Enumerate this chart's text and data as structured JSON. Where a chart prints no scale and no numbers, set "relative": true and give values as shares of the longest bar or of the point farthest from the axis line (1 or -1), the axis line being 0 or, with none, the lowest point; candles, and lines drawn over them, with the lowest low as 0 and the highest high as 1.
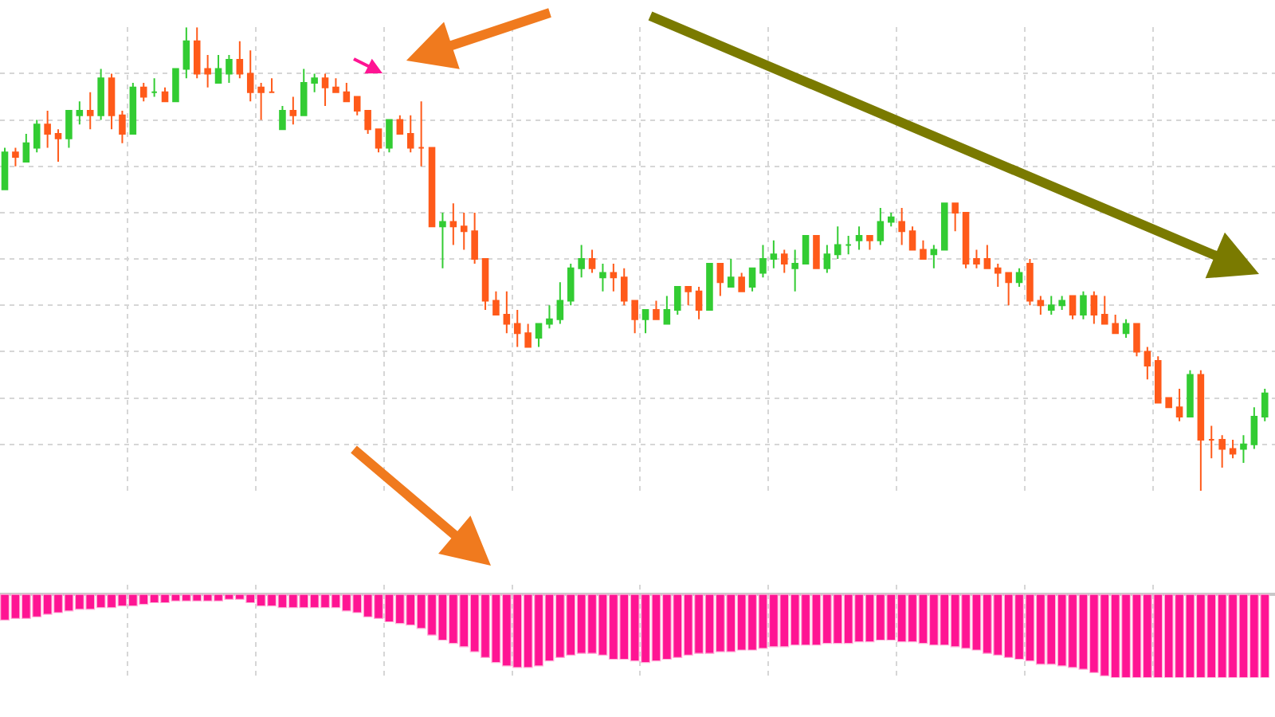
{
  "chart_data": [
    {
      "type": "candlestick",
      "relative": true,
      "grid": true,
      "tick_labels": false,
      "categories": [
        null,
        null,
        null,
        null,
        null,
        null,
        null,
        null,
        null,
        null,
        null,
        null,
        null,
        null,
        null,
        null,
        null,
        null,
        null,
        null,
        null,
        null,
        null,
        null,
        null,
        null,
        null,
        null,
        null,
        null,
        null,
        null,
        null,
        null,
        null,
        null,
        null,
        null,
        null,
        null,
        null,
        null,
        null,
        null,
        null,
        null,
        null,
        null,
        null,
        null,
        null,
        null,
        null,
        null,
        null,
        null,
        null,
        null,
        null,
        null,
        null,
        null,
        null,
        null,
        null,
        null,
        null,
        null,
        null,
        null,
        null,
        null,
        null,
        null,
        null,
        null,
        null,
        null,
        null,
        null,
        null,
        null,
        null,
        null,
        null,
        null,
        null,
        null,
        null,
        null,
        null,
        null,
        null,
        null,
        null,
        null,
        null,
        null,
        null,
        null,
        null,
        null,
        null,
        null,
        null,
        null,
        null,
        null,
        null,
        null,
        null,
        null,
        null,
        null,
        null,
        null,
        null,
        null,
        null
      ],
      "ohlc": [
        [
          0.65,
          0.74,
          0.65,
          0.73
        ],
        [
          0.73,
          0.74,
          0.7,
          0.72
        ],
        [
          0.71,
          0.77,
          0.71,
          0.75
        ],
        [
          0.74,
          0.8,
          0.73,
          0.79
        ],
        [
          0.79,
          0.82,
          0.74,
          0.77
        ],
        [
          0.77,
          0.78,
          0.71,
          0.76
        ],
        [
          0.76,
          0.82,
          0.74,
          0.82
        ],
        [
          0.81,
          0.84,
          0.79,
          0.82
        ],
        [
          0.82,
          0.86,
          0.78,
          0.81
        ],
        [
          0.81,
          0.91,
          0.8,
          0.89
        ],
        [
          0.89,
          0.9,
          0.78,
          0.81
        ],
        [
          0.81,
          0.82,
          0.75,
          0.77
        ],
        [
          0.77,
          0.88,
          0.77,
          0.87
        ],
        [
          0.87,
          0.88,
          0.84,
          0.85
        ],
        [
          0.86,
          0.89,
          0.85,
          0.86
        ],
        [
          0.86,
          0.87,
          0.84,
          0.84
        ],
        [
          0.84,
          0.91,
          0.84,
          0.91
        ],
        [
          0.91,
          1.0,
          0.89,
          0.97
        ],
        [
          0.97,
          1.0,
          0.89,
          0.9
        ],
        [
          0.91,
          0.94,
          0.87,
          0.9
        ],
        [
          0.88,
          0.94,
          0.88,
          0.91
        ],
        [
          0.9,
          0.94,
          0.88,
          0.93
        ],
        [
          0.93,
          0.97,
          0.89,
          0.9
        ],
        [
          0.9,
          0.95,
          0.84,
          0.86
        ],
        [
          0.87,
          0.88,
          0.8,
          0.86
        ],
        [
          0.86,
          0.89,
          0.86,
          0.86
        ],
        [
          0.78,
          0.83,
          0.78,
          0.82
        ],
        [
          0.82,
          0.85,
          0.79,
          0.81
        ],
        [
          0.81,
          0.91,
          0.81,
          0.88
        ],
        [
          0.88,
          0.9,
          0.86,
          0.89
        ],
        [
          0.89,
          0.9,
          0.83,
          0.87
        ],
        [
          0.87,
          0.89,
          0.86,
          0.86
        ],
        [
          0.86,
          0.88,
          0.84,
          0.84
        ],
        [
          0.85,
          0.85,
          0.81,
          0.82
        ],
        [
          0.82,
          0.82,
          0.77,
          0.78
        ],
        [
          0.78,
          0.78,
          0.73,
          0.74
        ],
        [
          0.74,
          0.8,
          0.73,
          0.8
        ],
        [
          0.8,
          0.81,
          0.77,
          0.77
        ],
        [
          0.77,
          0.81,
          0.73,
          0.74
        ],
        [
          0.74,
          0.84,
          0.7,
          0.74
        ],
        [
          0.74,
          0.74,
          0.57,
          0.57
        ],
        [
          0.57,
          0.6,
          0.48,
          0.58
        ],
        [
          0.58,
          0.62,
          0.53,
          0.57
        ],
        [
          0.57,
          0.6,
          0.52,
          0.56
        ],
        [
          0.56,
          0.6,
          0.49,
          0.5
        ],
        [
          0.5,
          0.5,
          0.39,
          0.41
        ],
        [
          0.41,
          0.43,
          0.38,
          0.38
        ],
        [
          0.38,
          0.43,
          0.34,
          0.36
        ],
        [
          0.36,
          0.39,
          0.31,
          0.34
        ],
        [
          0.34,
          0.36,
          0.31,
          0.31
        ],
        [
          0.33,
          0.36,
          0.31,
          0.36
        ],
        [
          0.36,
          0.4,
          0.35,
          0.37
        ],
        [
          0.37,
          0.45,
          0.36,
          0.41
        ],
        [
          0.41,
          0.49,
          0.4,
          0.48
        ],
        [
          0.48,
          0.53,
          0.46,
          0.5
        ],
        [
          0.5,
          0.52,
          0.47,
          0.48
        ],
        [
          0.46,
          0.49,
          0.43,
          0.47
        ],
        [
          0.47,
          0.49,
          0.43,
          0.46
        ],
        [
          0.46,
          0.48,
          0.4,
          0.41
        ],
        [
          0.41,
          0.41,
          0.34,
          0.37
        ],
        [
          0.37,
          0.39,
          0.34,
          0.39
        ],
        [
          0.39,
          0.41,
          0.37,
          0.37
        ],
        [
          0.36,
          0.42,
          0.36,
          0.39
        ],
        [
          0.39,
          0.44,
          0.38,
          0.44
        ],
        [
          0.44,
          0.44,
          0.4,
          0.43
        ],
        [
          0.43,
          0.44,
          0.37,
          0.39
        ],
        [
          0.39,
          0.49,
          0.39,
          0.49
        ],
        [
          0.49,
          0.49,
          0.42,
          0.45
        ],
        [
          0.44,
          0.5,
          0.44,
          0.46
        ],
        [
          0.46,
          0.47,
          0.43,
          0.43
        ],
        [
          0.44,
          0.48,
          0.43,
          0.48
        ],
        [
          0.47,
          0.53,
          0.46,
          0.5
        ],
        [
          0.5,
          0.54,
          0.48,
          0.51
        ],
        [
          0.51,
          0.52,
          0.47,
          0.49
        ],
        [
          0.48,
          0.52,
          0.43,
          0.49
        ],
        [
          0.49,
          0.55,
          0.49,
          0.55
        ],
        [
          0.55,
          0.55,
          0.48,
          0.48
        ],
        [
          0.48,
          0.53,
          0.47,
          0.51
        ],
        [
          0.51,
          0.57,
          0.5,
          0.53
        ],
        [
          0.53,
          0.55,
          0.51,
          0.53
        ],
        [
          0.54,
          0.57,
          0.52,
          0.55
        ],
        [
          0.55,
          0.55,
          0.52,
          0.54
        ],
        [
          0.54,
          0.61,
          0.53,
          0.58
        ],
        [
          0.58,
          0.6,
          0.57,
          0.59
        ],
        [
          0.58,
          0.61,
          0.53,
          0.56
        ],
        [
          0.56,
          0.57,
          0.52,
          0.52
        ],
        [
          0.52,
          0.54,
          0.5,
          0.5
        ],
        [
          0.51,
          0.53,
          0.48,
          0.52
        ],
        [
          0.52,
          0.62,
          0.52,
          0.62
        ],
        [
          0.62,
          0.62,
          0.56,
          0.6
        ],
        [
          0.6,
          0.6,
          0.48,
          0.49
        ],
        [
          0.5,
          0.52,
          0.48,
          0.49
        ],
        [
          0.5,
          0.53,
          0.48,
          0.48
        ],
        [
          0.48,
          0.49,
          0.44,
          0.47
        ],
        [
          0.47,
          0.47,
          0.4,
          0.45
        ],
        [
          0.45,
          0.48,
          0.44,
          0.47
        ],
        [
          0.49,
          0.5,
          0.4,
          0.41
        ],
        [
          0.41,
          0.42,
          0.38,
          0.4
        ],
        [
          0.39,
          0.42,
          0.38,
          0.4
        ],
        [
          0.4,
          0.42,
          0.39,
          0.41
        ],
        [
          0.42,
          0.42,
          0.37,
          0.38
        ],
        [
          0.38,
          0.43,
          0.37,
          0.42
        ],
        [
          0.42,
          0.43,
          0.36,
          0.38
        ],
        [
          0.38,
          0.42,
          0.36,
          0.36
        ],
        [
          0.36,
          0.38,
          0.34,
          0.34
        ],
        [
          0.34,
          0.37,
          0.33,
          0.36
        ],
        [
          0.36,
          0.36,
          0.29,
          0.3
        ],
        [
          0.3,
          0.31,
          0.24,
          0.27
        ],
        [
          0.28,
          0.29,
          0.19,
          0.19
        ],
        [
          0.2,
          0.2,
          0.18,
          0.18
        ],
        [
          0.18,
          0.22,
          0.15,
          0.16
        ],
        [
          0.16,
          0.26,
          0.16,
          0.25
        ],
        [
          0.25,
          0.26,
          0.0,
          0.11
        ],
        [
          0.11,
          0.14,
          0.07,
          0.11
        ],
        [
          0.11,
          0.12,
          0.05,
          0.09
        ],
        [
          0.09,
          0.11,
          0.07,
          0.08
        ],
        [
          0.09,
          0.12,
          0.06,
          0.1
        ],
        [
          0.1,
          0.18,
          0.09,
          0.16
        ],
        [
          0.16,
          0.22,
          0.15,
          0.21
        ]
      ]
    },
    {
      "type": "bar",
      "relative": true,
      "grid": "x",
      "tick_labels": false,
      "color": "#ff1493",
      "categories": [
        null,
        null,
        null,
        null,
        null,
        null,
        null,
        null,
        null,
        null,
        null,
        null,
        null,
        null,
        null,
        null,
        null,
        null,
        null,
        null,
        null,
        null,
        null,
        null,
        null,
        null,
        null,
        null,
        null,
        null,
        null,
        null,
        null,
        null,
        null,
        null,
        null,
        null,
        null,
        null,
        null,
        null,
        null,
        null,
        null,
        null,
        null,
        null,
        null,
        null,
        null,
        null,
        null,
        null,
        null,
        null,
        null,
        null,
        null,
        null,
        null,
        null,
        null,
        null,
        null,
        null,
        null,
        null,
        null,
        null,
        null,
        null,
        null,
        null,
        null,
        null,
        null,
        null,
        null,
        null,
        null,
        null,
        null,
        null,
        null,
        null,
        null,
        null,
        null,
        null,
        null,
        null,
        null,
        null,
        null,
        null,
        null,
        null,
        null,
        null,
        null,
        null,
        null,
        null,
        null,
        null,
        null,
        null,
        null,
        null,
        null,
        null,
        null,
        null,
        null,
        null,
        null,
        null,
        null
      ],
      "values": [
        -0.31,
        -0.29,
        -0.29,
        -0.27,
        -0.24,
        -0.22,
        -0.2,
        -0.18,
        -0.18,
        -0.16,
        -0.16,
        -0.14,
        -0.14,
        -0.12,
        -0.1,
        -0.1,
        -0.08,
        -0.08,
        -0.08,
        -0.08,
        -0.08,
        -0.06,
        -0.06,
        -0.1,
        -0.14,
        -0.14,
        -0.16,
        -0.16,
        -0.16,
        -0.16,
        -0.16,
        -0.16,
        -0.2,
        -0.22,
        -0.27,
        -0.29,
        -0.33,
        -0.35,
        -0.37,
        -0.41,
        -0.49,
        -0.55,
        -0.59,
        -0.63,
        -0.69,
        -0.76,
        -0.82,
        -0.86,
        -0.88,
        -0.88,
        -0.86,
        -0.8,
        -0.76,
        -0.73,
        -0.71,
        -0.71,
        -0.73,
        -0.78,
        -0.78,
        -0.8,
        -0.82,
        -0.8,
        -0.78,
        -0.76,
        -0.73,
        -0.71,
        -0.71,
        -0.69,
        -0.69,
        -0.67,
        -0.67,
        -0.65,
        -0.63,
        -0.63,
        -0.61,
        -0.61,
        -0.61,
        -0.59,
        -0.59,
        -0.59,
        -0.57,
        -0.57,
        -0.55,
        -0.55,
        -0.57,
        -0.57,
        -0.59,
        -0.61,
        -0.61,
        -0.63,
        -0.65,
        -0.67,
        -0.71,
        -0.73,
        -0.76,
        -0.78,
        -0.8,
        -0.84,
        -0.84,
        -0.86,
        -0.88,
        -0.9,
        -0.94,
        -0.98,
        -1,
        -1,
        -1,
        -1,
        -1,
        -1,
        -1,
        -1,
        -1,
        -1,
        -1,
        -1,
        -1,
        -1,
        -1
      ]
    }
  ]
}
